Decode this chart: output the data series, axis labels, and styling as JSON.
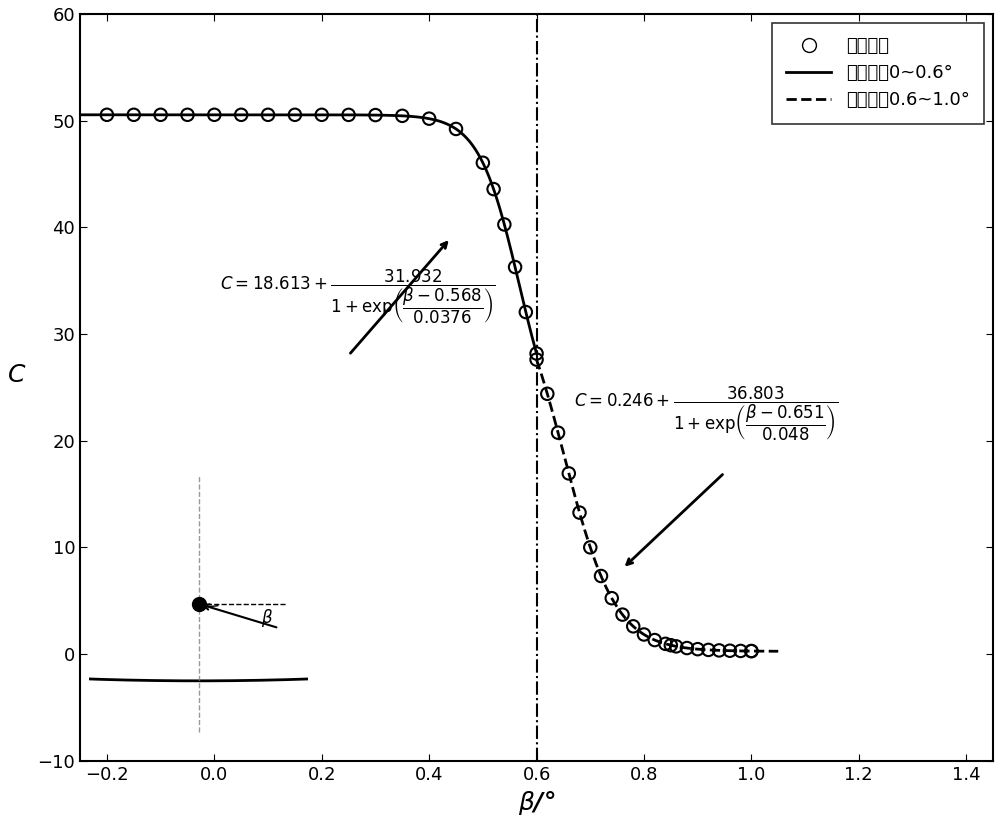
{
  "title": "",
  "xlabel": "$\\beta$/°",
  "ylabel": "$C$",
  "xlim": [
    -0.25,
    1.45
  ],
  "ylim": [
    -10,
    60
  ],
  "xticks": [
    -0.2,
    0.0,
    0.2,
    0.4,
    0.6,
    0.8,
    1.0,
    1.2,
    1.4
  ],
  "yticks": [
    -10,
    0,
    10,
    20,
    30,
    40,
    50,
    60
  ],
  "vline_x": 0.6,
  "fit1_a": 18.613,
  "fit1_b": 31.932,
  "fit1_c": 0.568,
  "fit1_d": 0.0376,
  "fit2_a": 0.246,
  "fit2_b": 36.803,
  "fit2_c": 0.651,
  "fit2_d": 0.048,
  "legend_labels": [
    "实验数据",
    "拟合曲线0~0.6°",
    "拟合曲线0.6~1.0°"
  ],
  "scatter_color": "black",
  "line1_color": "black",
  "line2_color": "black",
  "annotation1_text_line1": "$C=18.613+$",
  "annotation2_text_line1": "$C=0.246+$",
  "figsize": [
    10.0,
    8.24
  ],
  "dpi": 100
}
